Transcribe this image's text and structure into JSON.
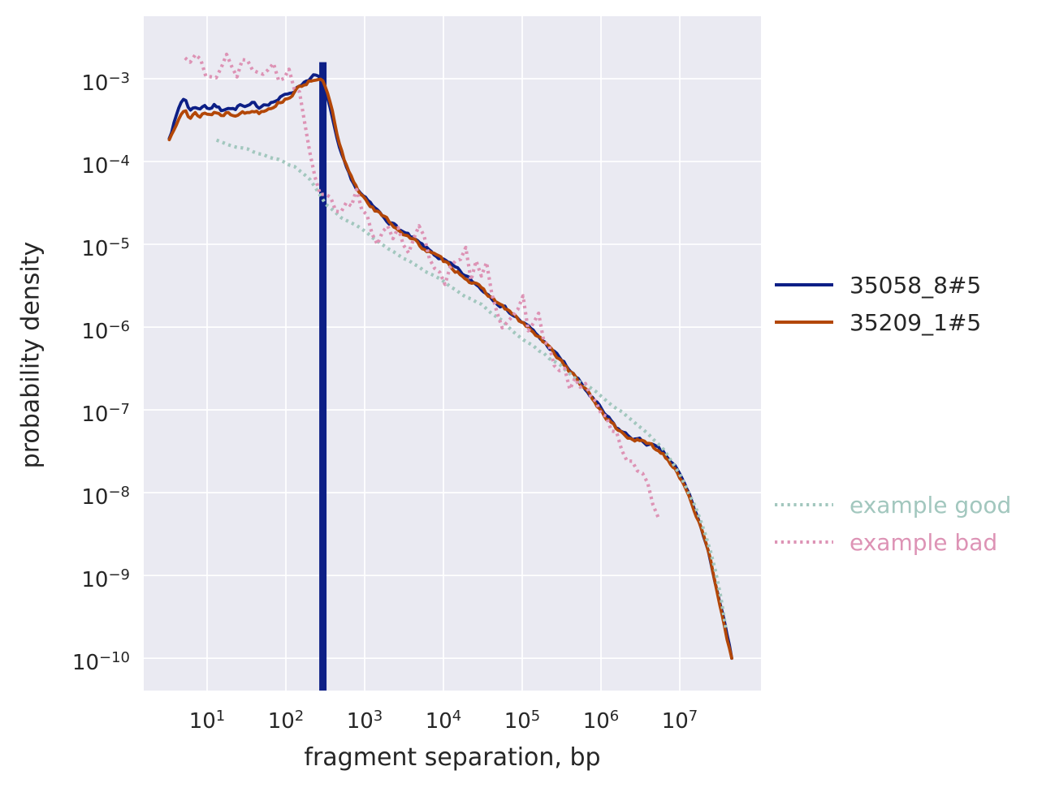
{
  "figure": {
    "background": "#ffffff",
    "plot_background": "#eaeaf2",
    "grid_color": "#ffffff",
    "text_color": "#262626"
  },
  "chart_data": {
    "type": "line",
    "title": "",
    "xlabel": "fragment separation, bp",
    "ylabel": "probability density",
    "x_axis": {
      "label": "fragment separation, bp",
      "scale": "log",
      "range_log10": [
        0.196,
        8.031
      ],
      "ticks": [
        {
          "v": 1,
          "base": "10",
          "exp": "1"
        },
        {
          "v": 2,
          "base": "10",
          "exp": "2"
        },
        {
          "v": 3,
          "base": "10",
          "exp": "3"
        },
        {
          "v": 4,
          "base": "10",
          "exp": "4"
        },
        {
          "v": 5,
          "base": "10",
          "exp": "5"
        },
        {
          "v": 6,
          "base": "10",
          "exp": "6"
        },
        {
          "v": 7,
          "base": "10",
          "exp": "7"
        }
      ]
    },
    "y_axis": {
      "label": "probability density",
      "scale": "log",
      "range_log10": [
        -10.39,
        -2.245
      ],
      "ticks": [
        {
          "v": -3,
          "base": "10",
          "exp": "−3"
        },
        {
          "v": -4,
          "base": "10",
          "exp": "−4"
        },
        {
          "v": -5,
          "base": "10",
          "exp": "−5"
        },
        {
          "v": -6,
          "base": "10",
          "exp": "−6"
        },
        {
          "v": -7,
          "base": "10",
          "exp": "−7"
        },
        {
          "v": -8,
          "base": "10",
          "exp": "−8"
        },
        {
          "v": -9,
          "base": "10",
          "exp": "−9"
        },
        {
          "v": -10,
          "base": "10",
          "exp": "−10"
        }
      ]
    },
    "legend_position": "right-outside",
    "grid": true,
    "series": [
      {
        "name": "35058_8#5",
        "color": "#0d1f86",
        "style": "solid",
        "noise": 0.05,
        "seed": 7,
        "spike": {
          "x_log10": 2.47,
          "top_log10": -2.8
        },
        "points_log10": [
          [
            0.52,
            -3.7
          ],
          [
            0.6,
            -3.48
          ],
          [
            0.66,
            -3.3
          ],
          [
            0.72,
            -3.22
          ],
          [
            0.78,
            -3.4
          ],
          [
            0.84,
            -3.32
          ],
          [
            0.9,
            -3.38
          ],
          [
            0.96,
            -3.3
          ],
          [
            1.02,
            -3.36
          ],
          [
            1.1,
            -3.32
          ],
          [
            1.18,
            -3.38
          ],
          [
            1.26,
            -3.33
          ],
          [
            1.34,
            -3.37
          ],
          [
            1.42,
            -3.32
          ],
          [
            1.5,
            -3.36
          ],
          [
            1.58,
            -3.31
          ],
          [
            1.66,
            -3.34
          ],
          [
            1.74,
            -3.29
          ],
          [
            1.82,
            -3.28
          ],
          [
            1.9,
            -3.25
          ],
          [
            2.0,
            -3.2
          ],
          [
            2.1,
            -3.14
          ],
          [
            2.2,
            -3.06
          ],
          [
            2.3,
            -2.99
          ],
          [
            2.37,
            -2.96
          ],
          [
            2.43,
            -3.0
          ],
          [
            2.5,
            -3.12
          ],
          [
            2.56,
            -3.35
          ],
          [
            2.64,
            -3.72
          ],
          [
            2.72,
            -3.98
          ],
          [
            2.8,
            -4.16
          ],
          [
            2.9,
            -4.33
          ],
          [
            3.0,
            -4.45
          ],
          [
            3.15,
            -4.59
          ],
          [
            3.3,
            -4.71
          ],
          [
            3.5,
            -4.86
          ],
          [
            3.7,
            -5.0
          ],
          [
            3.9,
            -5.13
          ],
          [
            4.1,
            -5.26
          ],
          [
            4.3,
            -5.4
          ],
          [
            4.5,
            -5.55
          ],
          [
            4.7,
            -5.7
          ],
          [
            4.9,
            -5.86
          ],
          [
            5.1,
            -6.02
          ],
          [
            5.3,
            -6.2
          ],
          [
            5.5,
            -6.4
          ],
          [
            5.7,
            -6.63
          ],
          [
            5.9,
            -6.87
          ],
          [
            6.05,
            -7.06
          ],
          [
            6.2,
            -7.22
          ],
          [
            6.35,
            -7.32
          ],
          [
            6.5,
            -7.37
          ],
          [
            6.65,
            -7.43
          ],
          [
            6.8,
            -7.53
          ],
          [
            6.95,
            -7.7
          ],
          [
            7.1,
            -7.97
          ],
          [
            7.25,
            -8.36
          ],
          [
            7.4,
            -8.86
          ],
          [
            7.55,
            -9.5
          ],
          [
            7.67,
            -10.05
          ]
        ]
      },
      {
        "name": "35209_1#5",
        "color": "#b34708",
        "style": "solid",
        "noise": 0.05,
        "seed": 13,
        "points_log10": [
          [
            0.52,
            -3.74
          ],
          [
            0.6,
            -3.55
          ],
          [
            0.66,
            -3.4
          ],
          [
            0.72,
            -3.33
          ],
          [
            0.78,
            -3.5
          ],
          [
            0.84,
            -3.42
          ],
          [
            0.9,
            -3.46
          ],
          [
            0.96,
            -3.4
          ],
          [
            1.02,
            -3.44
          ],
          [
            1.1,
            -3.4
          ],
          [
            1.18,
            -3.44
          ],
          [
            1.26,
            -3.4
          ],
          [
            1.34,
            -3.43
          ],
          [
            1.42,
            -3.39
          ],
          [
            1.5,
            -3.42
          ],
          [
            1.58,
            -3.38
          ],
          [
            1.66,
            -3.4
          ],
          [
            1.74,
            -3.36
          ],
          [
            1.82,
            -3.33
          ],
          [
            1.9,
            -3.29
          ],
          [
            2.0,
            -3.24
          ],
          [
            2.1,
            -3.17
          ],
          [
            2.2,
            -3.09
          ],
          [
            2.3,
            -3.02
          ],
          [
            2.38,
            -2.99
          ],
          [
            2.45,
            -3.02
          ],
          [
            2.52,
            -3.14
          ],
          [
            2.58,
            -3.36
          ],
          [
            2.66,
            -3.74
          ],
          [
            2.74,
            -4.0
          ],
          [
            2.82,
            -4.18
          ],
          [
            2.92,
            -4.35
          ],
          [
            3.02,
            -4.46
          ],
          [
            3.15,
            -4.6
          ],
          [
            3.3,
            -4.72
          ],
          [
            3.5,
            -4.87
          ],
          [
            3.7,
            -5.01
          ],
          [
            3.9,
            -5.14
          ],
          [
            4.1,
            -5.27
          ],
          [
            4.3,
            -5.41
          ],
          [
            4.5,
            -5.56
          ],
          [
            4.7,
            -5.71
          ],
          [
            4.9,
            -5.87
          ],
          [
            5.1,
            -6.03
          ],
          [
            5.3,
            -6.21
          ],
          [
            5.5,
            -6.41
          ],
          [
            5.7,
            -6.64
          ],
          [
            5.9,
            -6.88
          ],
          [
            6.05,
            -7.07
          ],
          [
            6.2,
            -7.23
          ],
          [
            6.35,
            -7.33
          ],
          [
            6.5,
            -7.38
          ],
          [
            6.65,
            -7.44
          ],
          [
            6.8,
            -7.54
          ],
          [
            6.95,
            -7.71
          ],
          [
            7.1,
            -7.98
          ],
          [
            7.25,
            -8.37
          ],
          [
            7.4,
            -8.87
          ],
          [
            7.55,
            -9.51
          ],
          [
            7.66,
            -10.02
          ]
        ]
      },
      {
        "name": "example good",
        "color": "#a2c7be",
        "style": "dotted",
        "noise": 0.03,
        "seed": 21,
        "points_log10": [
          [
            1.12,
            -3.74
          ],
          [
            1.3,
            -3.8
          ],
          [
            1.5,
            -3.86
          ],
          [
            1.7,
            -3.92
          ],
          [
            1.9,
            -3.97
          ],
          [
            2.05,
            -4.03
          ],
          [
            2.2,
            -4.12
          ],
          [
            2.35,
            -4.27
          ],
          [
            2.5,
            -4.5
          ],
          [
            2.65,
            -4.63
          ],
          [
            2.8,
            -4.73
          ],
          [
            3.0,
            -4.85
          ],
          [
            3.2,
            -4.98
          ],
          [
            3.4,
            -5.11
          ],
          [
            3.6,
            -5.23
          ],
          [
            3.8,
            -5.35
          ],
          [
            4.0,
            -5.46
          ],
          [
            4.2,
            -5.57
          ],
          [
            4.5,
            -5.74
          ],
          [
            4.8,
            -5.97
          ],
          [
            5.1,
            -6.2
          ],
          [
            5.4,
            -6.42
          ],
          [
            5.7,
            -6.62
          ],
          [
            5.95,
            -6.8
          ],
          [
            6.2,
            -6.98
          ],
          [
            6.45,
            -7.16
          ],
          [
            6.7,
            -7.37
          ],
          [
            6.9,
            -7.62
          ],
          [
            7.05,
            -7.87
          ],
          [
            7.2,
            -8.17
          ],
          [
            7.35,
            -8.58
          ],
          [
            7.5,
            -9.12
          ],
          [
            7.62,
            -9.85
          ]
        ]
      },
      {
        "name": "example bad",
        "color": "#dd93b5",
        "style": "dotted",
        "noise": 0.32,
        "seed": 42,
        "points_log10": [
          [
            0.72,
            -2.78
          ],
          [
            0.85,
            -2.82
          ],
          [
            0.95,
            -2.9
          ],
          [
            1.05,
            -2.96
          ],
          [
            1.15,
            -2.88
          ],
          [
            1.25,
            -2.82
          ],
          [
            1.35,
            -2.95
          ],
          [
            1.45,
            -2.86
          ],
          [
            1.55,
            -2.93
          ],
          [
            1.65,
            -2.82
          ],
          [
            1.75,
            -2.95
          ],
          [
            1.85,
            -2.86
          ],
          [
            1.95,
            -2.91
          ],
          [
            2.05,
            -2.96
          ],
          [
            2.15,
            -3.06
          ],
          [
            2.23,
            -3.32
          ],
          [
            2.3,
            -3.72
          ],
          [
            2.4,
            -4.08
          ],
          [
            2.5,
            -4.38
          ],
          [
            2.6,
            -4.46
          ],
          [
            2.7,
            -4.43
          ],
          [
            2.8,
            -4.56
          ],
          [
            2.9,
            -4.51
          ],
          [
            3.0,
            -4.61
          ],
          [
            3.15,
            -4.61
          ],
          [
            3.3,
            -4.76
          ],
          [
            3.45,
            -4.81
          ],
          [
            3.6,
            -4.96
          ],
          [
            3.75,
            -5.01
          ],
          [
            3.9,
            -5.13
          ],
          [
            4.05,
            -5.16
          ],
          [
            4.2,
            -5.31
          ],
          [
            4.35,
            -5.36
          ],
          [
            4.5,
            -5.46
          ],
          [
            4.65,
            -5.56
          ],
          [
            4.8,
            -5.66
          ],
          [
            5.0,
            -5.82
          ],
          [
            5.15,
            -6.02
          ],
          [
            5.3,
            -6.22
          ],
          [
            5.45,
            -6.47
          ],
          [
            5.6,
            -6.67
          ],
          [
            5.75,
            -6.82
          ],
          [
            5.9,
            -6.92
          ],
          [
            6.05,
            -7.07
          ],
          [
            6.2,
            -7.32
          ],
          [
            6.35,
            -7.62
          ],
          [
            6.5,
            -7.92
          ],
          [
            6.62,
            -8.17
          ],
          [
            6.75,
            -8.4
          ]
        ]
      }
    ]
  }
}
